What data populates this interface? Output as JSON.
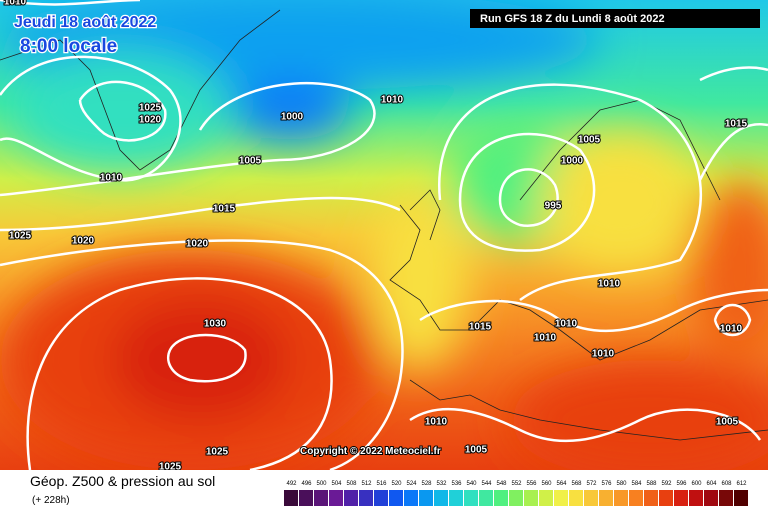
{
  "header": {
    "date": "Jeudi 18 août 2022",
    "time": "8:00 locale",
    "run": "Run GFS 18 Z du Lundi 8 août 2022"
  },
  "isobar_labels": [
    "1010",
    "1025",
    "1020",
    "1000",
    "1010",
    "1005",
    "1010",
    "1015",
    "1025",
    "1020",
    "1020",
    "1030",
    "1025",
    "1025",
    "1005",
    "1000",
    "995",
    "1015",
    "1010",
    "1015",
    "1010",
    "1010",
    "1010",
    "1010",
    "1010",
    "1005",
    "1005"
  ],
  "copyright": "Copyright © 2022 Meteociel.fr",
  "legend": {
    "title": "Géop. Z500 & pression au sol",
    "lead": "(+ 228h)",
    "ticks": [
      492,
      496,
      500,
      504,
      508,
      512,
      516,
      520,
      524,
      528,
      532,
      536,
      540,
      544,
      548,
      552,
      556,
      560,
      564,
      568,
      572,
      576,
      580,
      584,
      588,
      592,
      596,
      600,
      604,
      608,
      612
    ],
    "colors": [
      "#3a0a3a",
      "#4a0f5a",
      "#5a1478",
      "#6a1a96",
      "#5020a8",
      "#3830c0",
      "#2040d8",
      "#1058f0",
      "#0a78f8",
      "#0a98f0",
      "#10b8e8",
      "#20d0d8",
      "#30e0c0",
      "#40e8a0",
      "#50f080",
      "#80f060",
      "#a8f050",
      "#d0f048",
      "#f0f048",
      "#f8e040",
      "#f8c838",
      "#f8b030",
      "#f89828",
      "#f88020",
      "#f06018",
      "#e84010",
      "#d82010",
      "#c01010",
      "#a00810",
      "#780808",
      "#500000"
    ]
  }
}
